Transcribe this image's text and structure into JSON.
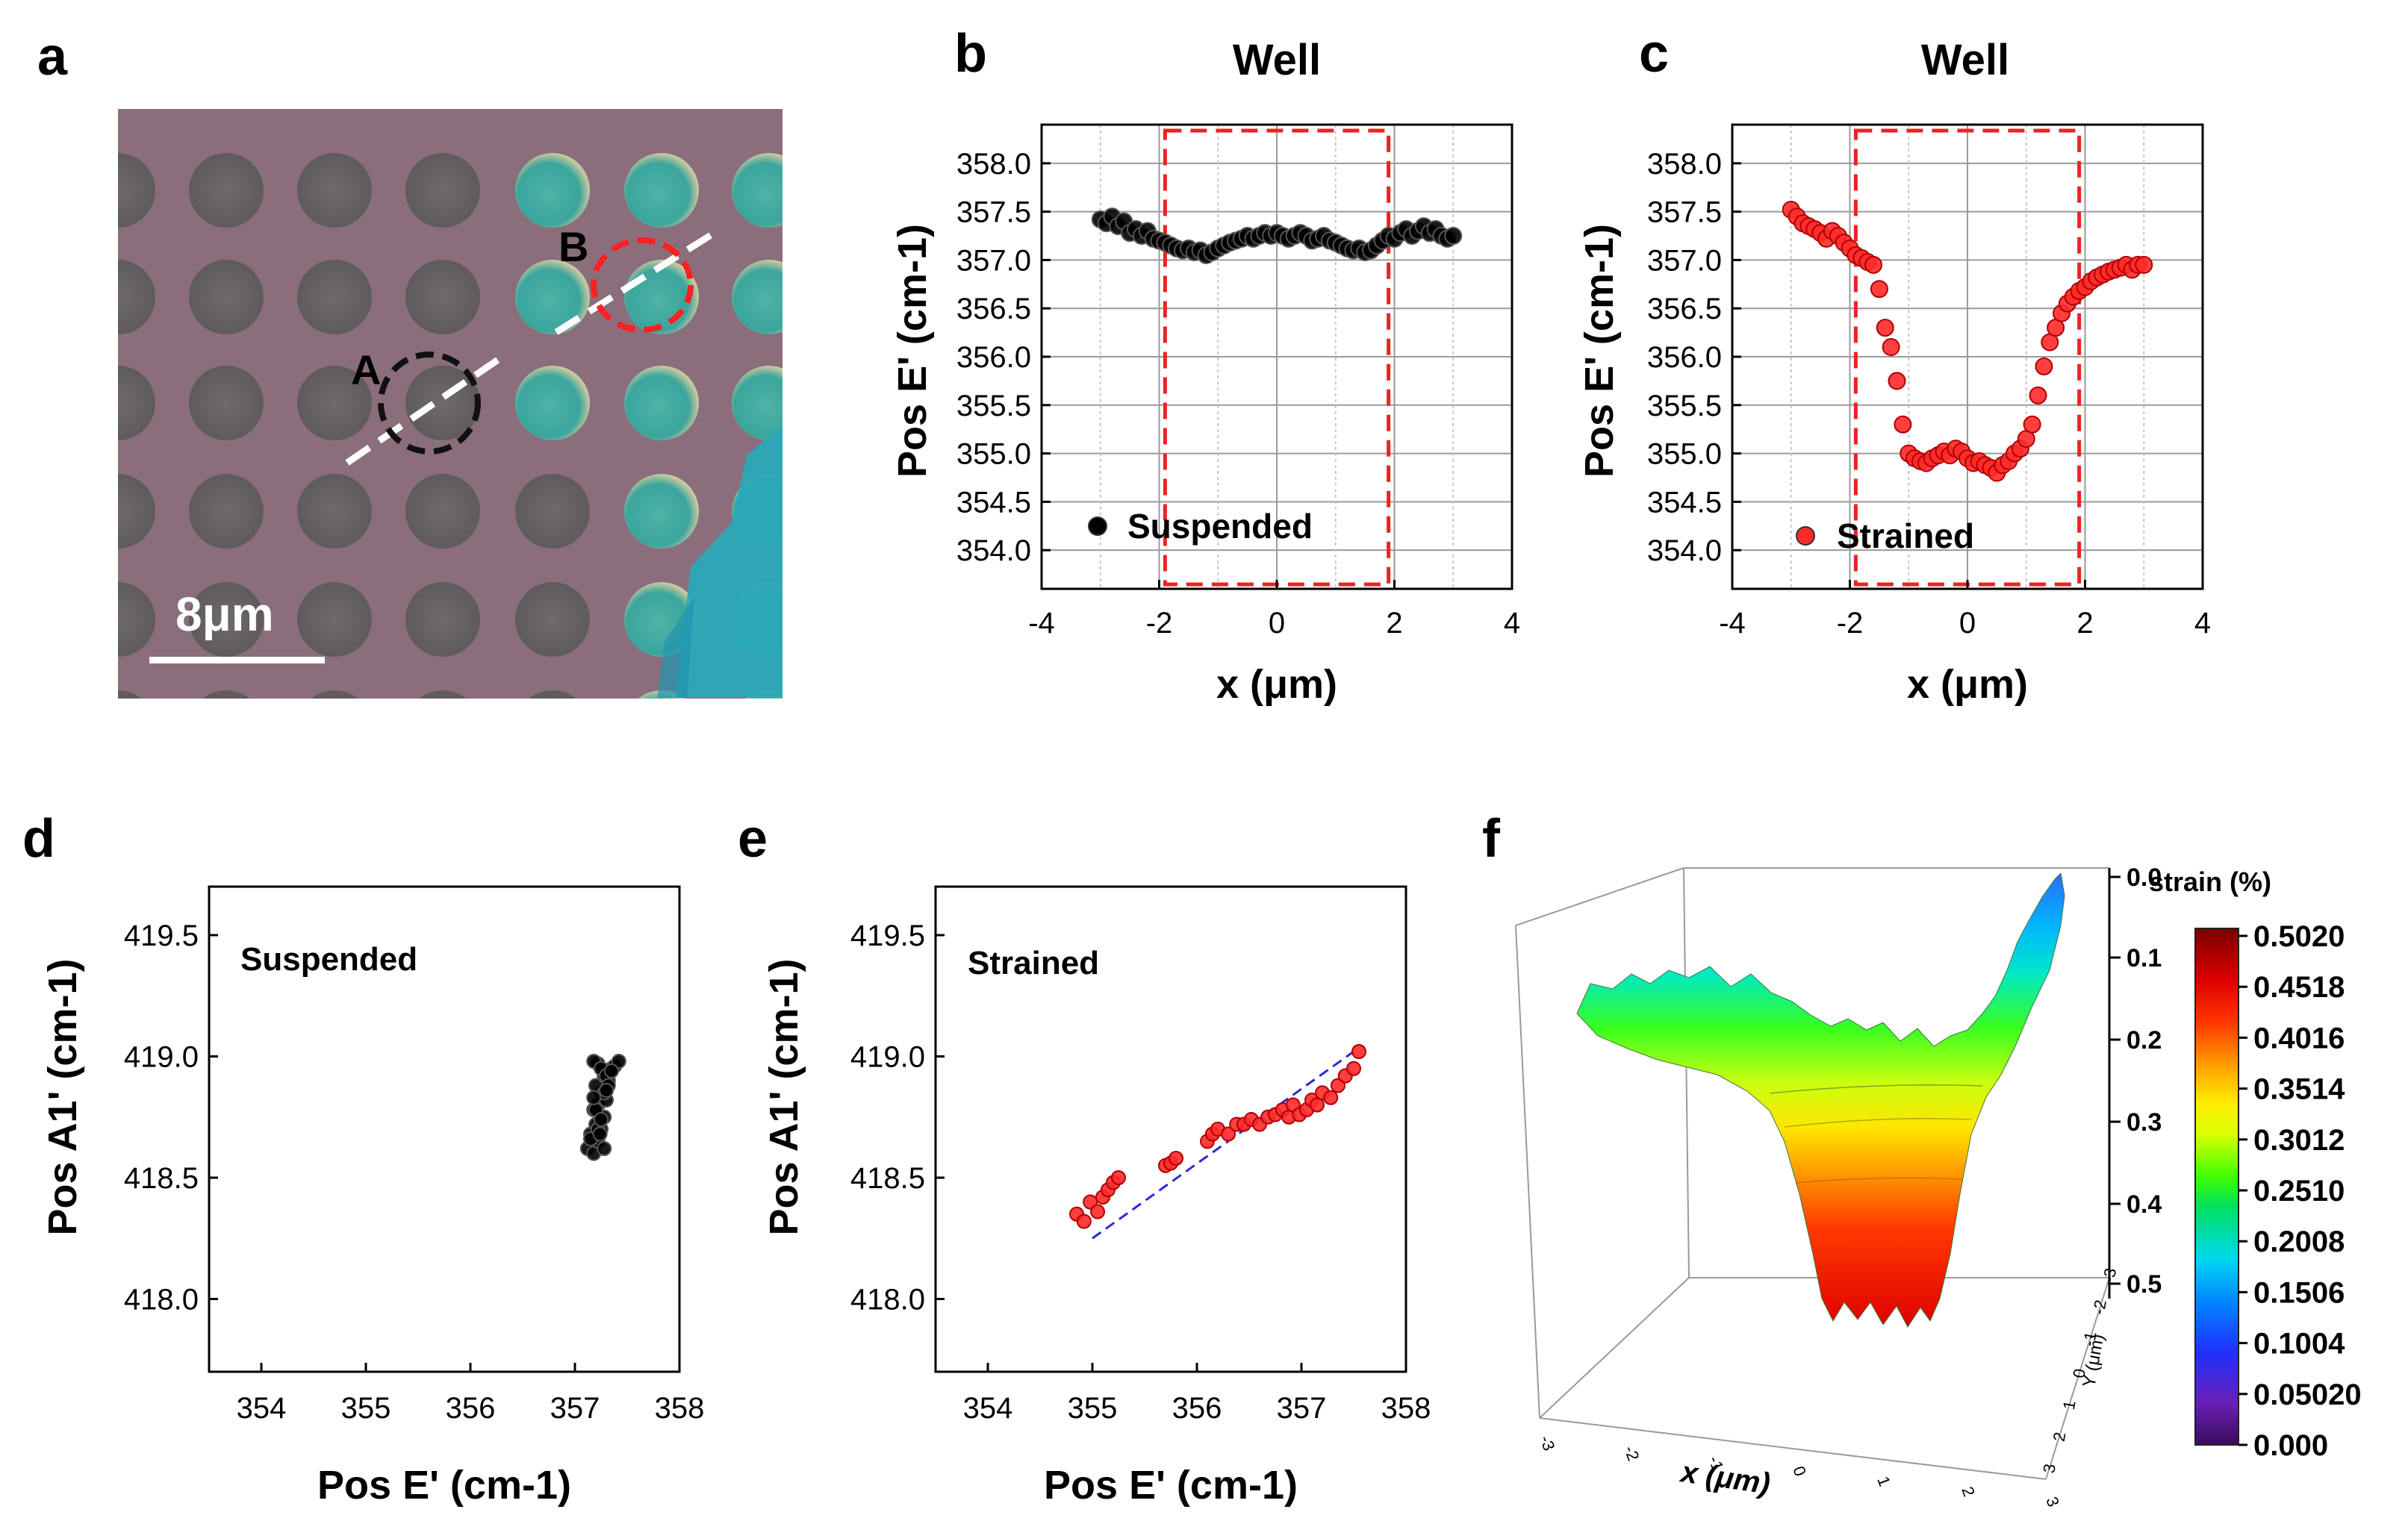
{
  "panels": {
    "a": {
      "letter": "a",
      "scale_bar": "8μm",
      "marker_a": "A",
      "marker_b": "B"
    }
  },
  "colorbar": {
    "title": "strain (%)",
    "ticks": [
      "0.5020",
      "0.4518",
      "0.4016",
      "0.3514",
      "0.3012",
      "0.2510",
      "0.2008",
      "0.1506",
      "0.1004",
      "0.05020",
      "0.000"
    ]
  },
  "chart_data": [
    {
      "id": "b",
      "letter": "b",
      "type": "scatter",
      "title": "Well",
      "xlabel": "x (μm)",
      "ylabel": "Pos E' (cm-1)",
      "xlim": [
        -4,
        4
      ],
      "ylim": [
        353.6,
        358.4
      ],
      "xticks": [
        "-4",
        "-2",
        "0",
        "2",
        "4"
      ],
      "yticks": [
        "354.0",
        "354.5",
        "355.0",
        "355.5",
        "356.0",
        "356.5",
        "357.0",
        "357.5",
        "358.0"
      ],
      "legend": "Suspended",
      "color": "#000000",
      "region": [
        -1.9,
        1.9
      ],
      "x": [
        -3.0,
        -2.9,
        -2.8,
        -2.7,
        -2.6,
        -2.5,
        -2.4,
        -2.3,
        -2.2,
        -2.1,
        -2.0,
        -1.9,
        -1.8,
        -1.7,
        -1.6,
        -1.5,
        -1.4,
        -1.3,
        -1.2,
        -1.1,
        -1.0,
        -0.9,
        -0.8,
        -0.7,
        -0.6,
        -0.5,
        -0.4,
        -0.3,
        -0.2,
        -0.1,
        0.0,
        0.1,
        0.2,
        0.3,
        0.4,
        0.5,
        0.6,
        0.7,
        0.8,
        0.9,
        1.0,
        1.1,
        1.2,
        1.3,
        1.4,
        1.5,
        1.6,
        1.7,
        1.8,
        1.9,
        2.0,
        2.1,
        2.2,
        2.3,
        2.4,
        2.5,
        2.6,
        2.7,
        2.8,
        2.9,
        3.0
      ],
      "y": [
        357.42,
        357.38,
        357.45,
        357.35,
        357.4,
        357.28,
        357.32,
        357.25,
        357.3,
        357.22,
        357.2,
        357.18,
        357.15,
        357.12,
        357.1,
        357.12,
        357.08,
        357.1,
        357.05,
        357.08,
        357.12,
        357.15,
        357.18,
        357.2,
        357.22,
        357.25,
        357.22,
        357.25,
        357.28,
        357.25,
        357.28,
        357.25,
        357.22,
        357.25,
        357.28,
        357.25,
        357.2,
        357.22,
        357.25,
        357.2,
        357.18,
        357.15,
        357.12,
        357.1,
        357.12,
        357.08,
        357.1,
        357.15,
        357.2,
        357.25,
        357.22,
        357.28,
        357.32,
        357.25,
        357.3,
        357.35,
        357.28,
        357.32,
        357.25,
        357.22,
        357.25
      ]
    },
    {
      "id": "c",
      "letter": "c",
      "type": "scatter",
      "title": "Well",
      "xlabel": "x (μm)",
      "ylabel": "Pos E' (cm-1)",
      "xlim": [
        -4,
        4
      ],
      "ylim": [
        353.6,
        358.4
      ],
      "xticks": [
        "-4",
        "-2",
        "0",
        "2",
        "4"
      ],
      "yticks": [
        "354.0",
        "354.5",
        "355.0",
        "355.5",
        "356.0",
        "356.5",
        "357.0",
        "357.5",
        "358.0"
      ],
      "legend": "Strained",
      "color": "#ff2a2a",
      "region": [
        -1.9,
        1.9
      ],
      "x": [
        -3.0,
        -2.9,
        -2.8,
        -2.7,
        -2.6,
        -2.5,
        -2.4,
        -2.3,
        -2.2,
        -2.1,
        -2.0,
        -1.9,
        -1.8,
        -1.7,
        -1.6,
        -1.5,
        -1.4,
        -1.3,
        -1.2,
        -1.1,
        -1.0,
        -0.9,
        -0.8,
        -0.7,
        -0.6,
        -0.5,
        -0.4,
        -0.3,
        -0.2,
        -0.1,
        0.0,
        0.1,
        0.2,
        0.3,
        0.4,
        0.5,
        0.6,
        0.7,
        0.8,
        0.9,
        1.0,
        1.1,
        1.2,
        1.3,
        1.4,
        1.5,
        1.6,
        1.7,
        1.8,
        1.9,
        2.0,
        2.1,
        2.2,
        2.3,
        2.4,
        2.5,
        2.6,
        2.7,
        2.8,
        2.9,
        3.0
      ],
      "y": [
        357.52,
        357.45,
        357.38,
        357.35,
        357.32,
        357.28,
        357.22,
        357.3,
        357.25,
        357.18,
        357.12,
        357.05,
        357.02,
        356.98,
        356.95,
        356.7,
        356.3,
        356.1,
        355.75,
        355.3,
        355.0,
        354.95,
        354.92,
        354.9,
        354.95,
        354.98,
        355.02,
        354.98,
        355.05,
        355.02,
        354.95,
        354.9,
        354.92,
        354.88,
        354.85,
        354.8,
        354.88,
        354.92,
        355.0,
        355.05,
        355.15,
        355.3,
        355.6,
        355.9,
        356.15,
        356.3,
        356.45,
        356.55,
        356.62,
        356.68,
        356.72,
        356.78,
        356.82,
        356.85,
        356.88,
        356.9,
        356.92,
        356.95,
        356.9,
        356.95,
        356.95
      ]
    },
    {
      "id": "d",
      "letter": "d",
      "type": "scatter",
      "xlabel": "Pos E' (cm-1)",
      "ylabel": "Pos A1' (cm-1)",
      "xlim": [
        353.5,
        358
      ],
      "ylim": [
        417.7,
        419.7
      ],
      "xticks": [
        "354",
        "355",
        "356",
        "357",
        "358"
      ],
      "yticks": [
        "418.0",
        "418.5",
        "419.0",
        "419.5"
      ],
      "annotation": "Suspended",
      "color": "#000000",
      "x": [
        357.12,
        357.18,
        357.22,
        357.15,
        357.25,
        357.2,
        357.28,
        357.18,
        357.22,
        357.3,
        357.25,
        357.2,
        357.32,
        357.28,
        357.35,
        357.22,
        357.18,
        357.25,
        357.3,
        357.38,
        357.42,
        357.28,
        357.2,
        357.15,
        357.22,
        357.28,
        357.32,
        357.25,
        357.18,
        357.24,
        357.3,
        357.35
      ],
      "y": [
        418.62,
        418.6,
        418.65,
        418.68,
        418.7,
        418.72,
        418.75,
        418.78,
        418.8,
        418.82,
        418.85,
        418.88,
        418.9,
        418.92,
        418.95,
        418.97,
        418.98,
        418.95,
        418.92,
        418.96,
        418.98,
        418.85,
        418.78,
        418.66,
        418.7,
        418.62,
        418.88,
        418.74,
        418.83,
        418.68,
        418.86,
        418.94
      ]
    },
    {
      "id": "e",
      "letter": "e",
      "type": "scatter",
      "xlabel": "Pos E' (cm-1)",
      "ylabel": "Pos A1' (cm-1)",
      "xlim": [
        353.5,
        358
      ],
      "ylim": [
        417.7,
        419.7
      ],
      "xticks": [
        "354",
        "355",
        "356",
        "357",
        "358"
      ],
      "yticks": [
        "418.0",
        "418.5",
        "419.0",
        "419.5"
      ],
      "annotation": "Strained",
      "color": "#ff2a2a",
      "fit_line": {
        "x": [
          355.0,
          357.5
        ],
        "y": [
          418.25,
          419.02
        ]
      },
      "x": [
        354.85,
        354.92,
        354.98,
        355.05,
        355.1,
        355.15,
        355.2,
        355.25,
        355.7,
        355.75,
        355.8,
        356.1,
        356.15,
        356.2,
        356.3,
        356.38,
        356.45,
        356.52,
        356.6,
        356.68,
        356.75,
        356.82,
        356.88,
        356.92,
        356.98,
        357.05,
        357.1,
        357.15,
        357.2,
        357.28,
        357.35,
        357.42,
        357.5,
        357.55
      ],
      "y": [
        418.35,
        418.32,
        418.4,
        418.36,
        418.42,
        418.45,
        418.48,
        418.5,
        418.55,
        418.56,
        418.58,
        418.65,
        418.68,
        418.7,
        418.68,
        418.72,
        418.72,
        418.74,
        418.72,
        418.75,
        418.76,
        418.78,
        418.75,
        418.8,
        418.76,
        418.78,
        418.82,
        418.8,
        418.85,
        418.83,
        418.88,
        418.92,
        418.95,
        419.02
      ]
    }
  ],
  "surface_3d": {
    "letter": "f",
    "xlabel": "x (μm)",
    "ylabel": "Y (μm)",
    "z_ticks": [
      "0.0",
      "0.1",
      "0.2",
      "0.3",
      "0.4",
      "0.5"
    ],
    "x_ticks": [
      "-3",
      "-2",
      "-1",
      "0",
      "1",
      "2",
      "3"
    ],
    "y_ticks": [
      "3",
      "2",
      "1",
      "0",
      "-1",
      "-2",
      "-3"
    ]
  }
}
